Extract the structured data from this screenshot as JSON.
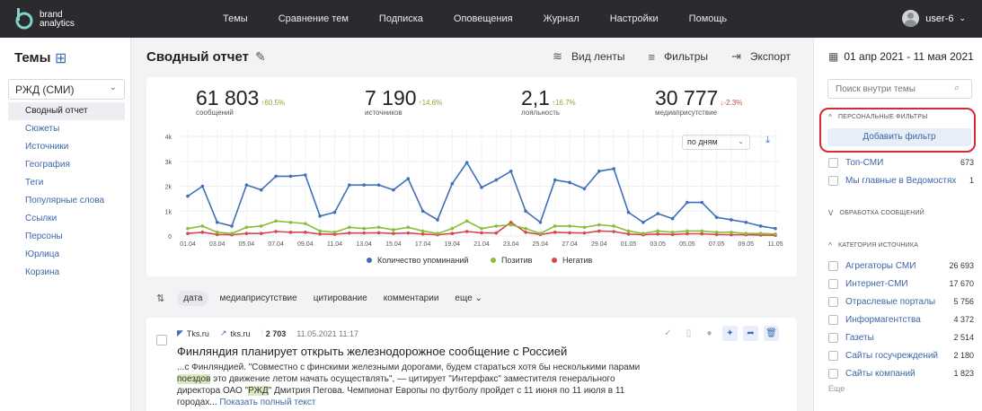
{
  "topnav": {
    "logo_line1": "brand",
    "logo_line2": "analytics",
    "items": [
      "Темы",
      "Сравнение тем",
      "Подписка",
      "Оповещения",
      "Журнал",
      "Настройки",
      "Помощь"
    ],
    "user": "user-6"
  },
  "leftbar": {
    "title": "Темы",
    "theme": "РЖД (СМИ)",
    "menu": [
      "Сводный отчет",
      "Сюжеты",
      "Источники",
      "География",
      "Теги",
      "Популярные слова",
      "Ссылки",
      "Персоны",
      "Юрлица",
      "Корзина"
    ]
  },
  "main": {
    "title": "Сводный отчет",
    "toolbar": {
      "feed_view": "Вид ленты",
      "filters": "Фильтры",
      "export": "Экспорт"
    },
    "stats": [
      {
        "value": "61 803",
        "delta": "↑60.5%",
        "dir": "up",
        "label": "сообщений"
      },
      {
        "value": "7 190",
        "delta": "↑14.6%",
        "dir": "up",
        "label": "источников"
      },
      {
        "value": "2,1",
        "delta": "↑16.7%",
        "dir": "up",
        "label": "лояльность"
      },
      {
        "value": "30 777",
        "delta": "↓-2.3%",
        "dir": "down",
        "label": "медиаприсутствие"
      }
    ],
    "period": "по дням",
    "sort": {
      "options": [
        "дата",
        "медиаприсутствие",
        "цитирование",
        "комментарии",
        "еще"
      ]
    },
    "article": {
      "source_name": "Tks.ru",
      "source_link": "tks.ru",
      "reach": "2 703",
      "date": "11.05.2021 11:17",
      "title": "Финляндия планирует открыть железнодорожное сообщение с Россией",
      "text_1": "...с Финляндией. \"Совместно с финскими железными дорогами, будем стараться хотя бы несколькими парами ",
      "hl_1": "поездов",
      "text_2": " это движение летом начать осуществлять\", — цитирует \"Интерфакс\" заместителя генерального директора ОАО \"",
      "hl_2": "РЖД",
      "text_3": "\" Дмитрия Пегова. Чемпионат Европы по футболу пройдет с 11 июня по 11 июля в 11 городах...",
      "show_full": "Показать полный текст"
    }
  },
  "chart_data": {
    "type": "line",
    "x": [
      "01.04",
      "02.04",
      "03.04",
      "04.04",
      "05.04",
      "06.04",
      "07.04",
      "08.04",
      "09.04",
      "10.04",
      "11.04",
      "12.04",
      "13.04",
      "14.04",
      "15.04",
      "16.04",
      "17.04",
      "18.04",
      "19.04",
      "20.04",
      "21.04",
      "22.04",
      "23.04",
      "24.04",
      "25.04",
      "26.04",
      "27.04",
      "28.04",
      "29.04",
      "30.04",
      "01.05",
      "02.05",
      "03.05",
      "04.05",
      "05.05",
      "06.05",
      "07.05",
      "08.05",
      "09.05",
      "10.05",
      "11.05"
    ],
    "x_tick_labels": [
      "01.04",
      "03.04",
      "05.04",
      "07.04",
      "09.04",
      "11.04",
      "13.04",
      "15.04",
      "17.04",
      "19.04",
      "21.04",
      "23.04",
      "25.04",
      "27.04",
      "29.04",
      "01.05",
      "03.05",
      "05.05",
      "07.05",
      "09.05",
      "11.05"
    ],
    "y_tick_labels": [
      "0",
      "1k",
      "2k",
      "3k",
      "4k"
    ],
    "ylim": [
      0,
      4000
    ],
    "grid": true,
    "legend": "bottom",
    "series": [
      {
        "name": "Количество упоминаний",
        "color": "#3f6fb6",
        "values": [
          1600,
          2000,
          550,
          400,
          2050,
          1850,
          2400,
          2400,
          2450,
          800,
          950,
          2050,
          2050,
          2050,
          1850,
          2300,
          1000,
          650,
          2100,
          2950,
          1950,
          2250,
          2600,
          1000,
          550,
          2250,
          2150,
          1900,
          2600,
          2700,
          950,
          550,
          900,
          700,
          1350,
          1350,
          750,
          650,
          550,
          400,
          300
        ]
      },
      {
        "name": "Позитив",
        "color": "#8cbc3a",
        "values": [
          300,
          400,
          150,
          100,
          350,
          400,
          600,
          550,
          500,
          200,
          150,
          350,
          300,
          350,
          250,
          350,
          200,
          100,
          300,
          600,
          300,
          400,
          450,
          300,
          100,
          400,
          400,
          350,
          450,
          400,
          200,
          100,
          200,
          150,
          200,
          200,
          150,
          150,
          100,
          100,
          80
        ]
      },
      {
        "name": "Негатив",
        "color": "#d24b4b",
        "values": [
          100,
          150,
          60,
          50,
          100,
          100,
          180,
          150,
          150,
          80,
          70,
          120,
          120,
          130,
          100,
          120,
          80,
          50,
          100,
          180,
          130,
          120,
          550,
          150,
          60,
          150,
          130,
          120,
          200,
          180,
          80,
          50,
          80,
          60,
          90,
          90,
          60,
          50,
          50,
          40,
          30
        ]
      }
    ]
  },
  "rightbar": {
    "date_range": "01 апр 2021 - 11 мая 2021",
    "search_placeholder": "Поиск внутри темы",
    "personal_filters": "ПЕРСОНАЛЬНЫЕ ФИЛЬТРЫ",
    "add_filter": "Добавить фильтр",
    "filters": [
      {
        "name": "Топ-СМИ",
        "count": "673"
      },
      {
        "name": "Мы главные в Ведомостях",
        "count": "1"
      }
    ],
    "processing": "ОБРАБОТКА СООБЩЕНИЙ",
    "source_category": "КАТЕГОРИЯ ИСТОЧНИКА",
    "categories": [
      {
        "name": "Агрегаторы СМИ",
        "count": "26 693"
      },
      {
        "name": "Интернет-СМИ",
        "count": "17 670"
      },
      {
        "name": "Отраслевые порталы",
        "count": "5 756"
      },
      {
        "name": "Информагентства",
        "count": "4 372"
      },
      {
        "name": "Газеты",
        "count": "2 514"
      },
      {
        "name": "Сайты госучреждений",
        "count": "2 180"
      },
      {
        "name": "Сайты компаний",
        "count": "1 823"
      }
    ],
    "more": "Еще"
  }
}
